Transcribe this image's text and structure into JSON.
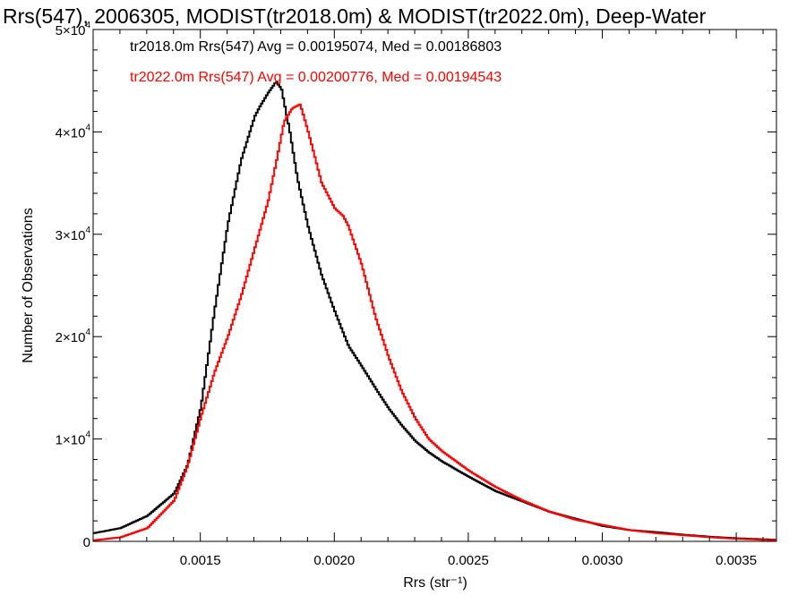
{
  "chart_data": {
    "type": "line",
    "title": "Rrs(547), 2006305, MODIST(tr2018.0m) & MODIST(tr2022.0m), Deep-Water",
    "xlabel": "Rrs (str⁻¹)",
    "ylabel": "Number of Observations",
    "xlim": [
      0.0011,
      0.00365
    ],
    "ylim": [
      0,
      50000
    ],
    "x_ticks": [
      0.0015,
      0.002,
      0.0025,
      0.003,
      0.0035
    ],
    "x_tick_labels": [
      "0.0015",
      "0.0020",
      "0.0025",
      "0.0030",
      "0.0035"
    ],
    "y_ticks": [
      0,
      10000,
      20000,
      30000,
      40000,
      50000
    ],
    "y_tick_labels": [
      {
        "mant": "0",
        "exp": ""
      },
      {
        "mant": "1×10",
        "exp": "4"
      },
      {
        "mant": "2×10",
        "exp": "4"
      },
      {
        "mant": "3×10",
        "exp": "4"
      },
      {
        "mant": "4×10",
        "exp": "4"
      },
      {
        "mant": "5×10",
        "exp": "4"
      }
    ],
    "grid": false,
    "legend_placement": "top-left",
    "annotations": [
      {
        "text": "tr2018.0m Rrs(547) Avg = 0.00195074, Med = 0.00186803",
        "color": "#000000"
      },
      {
        "text": "tr2022.0m Rrs(547) Avg = 0.00200776, Med = 0.00194543",
        "color": "#ff0000"
      }
    ],
    "series": [
      {
        "color": "#000000",
        "x": [
          0.0011,
          0.0012,
          0.0013,
          0.0014,
          0.00145,
          0.0015,
          0.00155,
          0.0016,
          0.00165,
          0.0017,
          0.00172,
          0.00175,
          0.00178,
          0.0018,
          0.00183,
          0.00186,
          0.0019,
          0.00195,
          0.002,
          0.00205,
          0.0021,
          0.00215,
          0.0022,
          0.00225,
          0.0023,
          0.00235,
          0.0024,
          0.0025,
          0.0026,
          0.0027,
          0.0028,
          0.0029,
          0.003,
          0.0031,
          0.0032,
          0.0033,
          0.0034,
          0.0035,
          0.00365
        ],
        "y": [
          800,
          1300,
          2500,
          4700,
          7500,
          13200,
          22500,
          31000,
          37300,
          41500,
          42500,
          43800,
          44900,
          44200,
          40200,
          35400,
          30700,
          26000,
          22400,
          19100,
          17100,
          15000,
          13000,
          11300,
          9800,
          8700,
          7800,
          6300,
          4900,
          3900,
          2900,
          2200,
          1500,
          1100,
          900,
          650,
          450,
          300,
          150
        ]
      },
      {
        "color": "#ff0000",
        "x": [
          0.0011,
          0.0012,
          0.0013,
          0.0014,
          0.00145,
          0.0015,
          0.00155,
          0.0016,
          0.00165,
          0.0017,
          0.00175,
          0.00178,
          0.00181,
          0.00184,
          0.00187,
          0.0019,
          0.00195,
          0.002,
          0.00203,
          0.00205,
          0.0021,
          0.00215,
          0.0022,
          0.00225,
          0.0023,
          0.00235,
          0.0024,
          0.0025,
          0.0026,
          0.0027,
          0.0028,
          0.0029,
          0.003,
          0.0031,
          0.0032,
          0.0033,
          0.0034,
          0.0035,
          0.00365
        ],
        "y": [
          100,
          400,
          1300,
          4000,
          7400,
          12200,
          16500,
          20000,
          24000,
          28600,
          33200,
          37000,
          41000,
          42300,
          42700,
          40000,
          35000,
          32500,
          31800,
          30800,
          27000,
          22000,
          18000,
          14600,
          12000,
          10000,
          8800,
          6900,
          5300,
          4000,
          2900,
          2100,
          1600,
          1100,
          800,
          600,
          400,
          250,
          100
        ]
      }
    ]
  }
}
